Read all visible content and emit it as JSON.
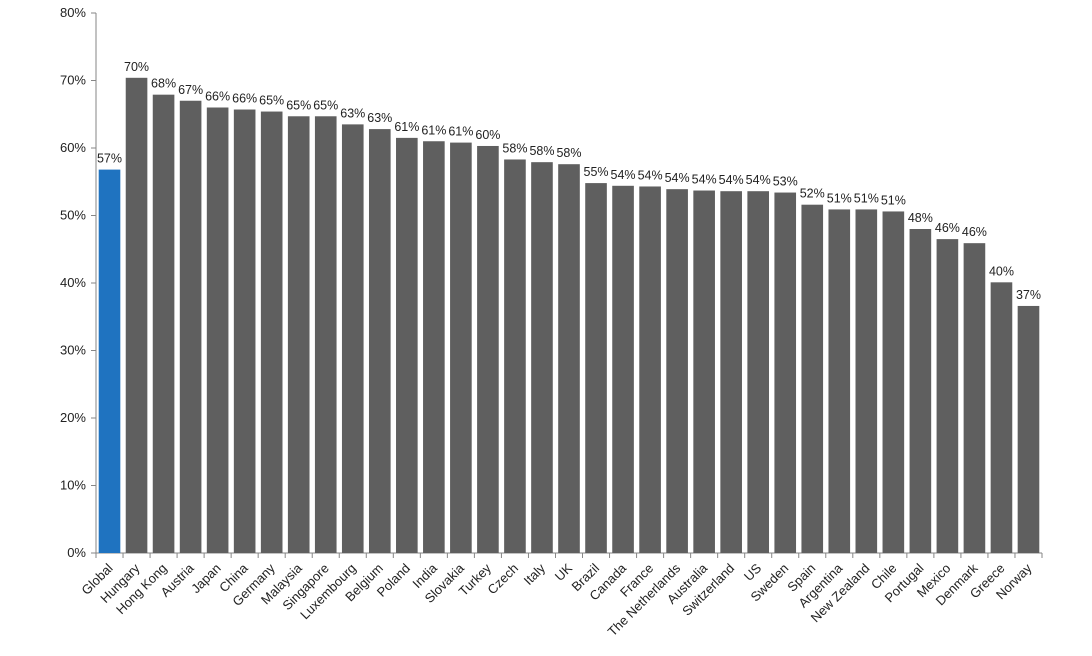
{
  "chart_data": {
    "type": "bar",
    "title": "",
    "xlabel": "",
    "ylabel": "",
    "ylim": [
      0,
      80
    ],
    "yticks": [
      0,
      10,
      20,
      30,
      40,
      50,
      60,
      70,
      80
    ],
    "ytick_labels": [
      "0%",
      "10%",
      "20%",
      "30%",
      "40%",
      "50%",
      "60%",
      "70%",
      "80%"
    ],
    "grid": false,
    "legend": "none",
    "highlight_color": "#1f73c0",
    "bar_color": "#5f5f5f",
    "categories": [
      "Global",
      "Hungary",
      "Hong Kong",
      "Austria",
      "Japan",
      "China",
      "Germany",
      "Malaysia",
      "Singapore",
      "Luxembourg",
      "Belgium",
      "Poland",
      "India",
      "Slovakia",
      "Turkey",
      "Czech",
      "Italy",
      "UK",
      "Brazil",
      "Canada",
      "France",
      "The Netherlands",
      "Australia",
      "Switzerland",
      "US",
      "Sweden",
      "Spain",
      "Argentina",
      "New Zealand",
      "Chile",
      "Portugal",
      "Mexico",
      "Denmark",
      "Greece",
      "Norway"
    ],
    "values": [
      56.8,
      70.4,
      67.9,
      67.0,
      66.0,
      65.7,
      65.4,
      64.7,
      64.7,
      63.5,
      62.8,
      61.5,
      61.0,
      60.8,
      60.3,
      58.3,
      57.9,
      57.6,
      54.8,
      54.4,
      54.3,
      53.9,
      53.7,
      53.6,
      53.6,
      53.4,
      51.6,
      50.9,
      50.9,
      50.6,
      48.0,
      46.5,
      45.9,
      40.1,
      36.6
    ],
    "labels": [
      "57%",
      "70%",
      "68%",
      "67%",
      "66%",
      "66%",
      "65%",
      "65%",
      "65%",
      "63%",
      "63%",
      "61%",
      "61%",
      "61%",
      "60%",
      "58%",
      "58%",
      "58%",
      "55%",
      "54%",
      "54%",
      "54%",
      "54%",
      "54%",
      "54%",
      "53%",
      "52%",
      "51%",
      "51%",
      "51%",
      "48%",
      "46%",
      "46%",
      "40%",
      "37%"
    ],
    "highlight_index": 0
  }
}
